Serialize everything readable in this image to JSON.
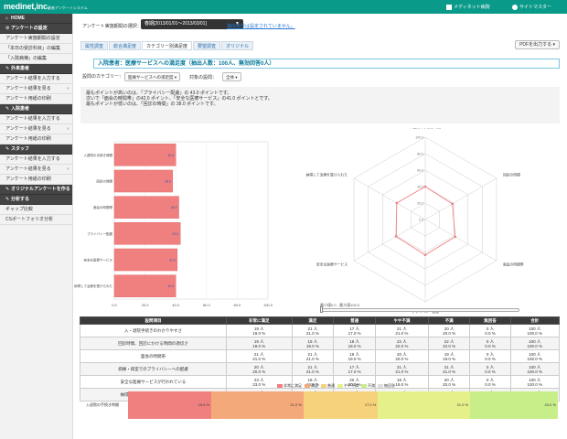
{
  "header": {
    "logo": "medinet,inc.",
    "logo_sub": "患者アンケートシステム",
    "hospital": "メディネット病院",
    "user": "サイトマスター"
  },
  "colors": {
    "brand": "#0a9a8a",
    "bar": "#f08080",
    "radar_line": "#f08080",
    "seg_very_satisfied": "#f08080",
    "seg_satisfied": "#f4a97a",
    "seg_normal": "#f6d27a",
    "seg_somewhat": "#e6f08a",
    "seg_dissatisfied": "#c8ee8a"
  },
  "sidebar": {
    "items": [
      {
        "label": "HOME",
        "dark": true,
        "sym": "⌂"
      },
      {
        "label": "アンケートの設定",
        "dark": true,
        "sym": "⚙"
      },
      {
        "label": "アンケート実施期間の設定",
        "dark": false
      },
      {
        "label": "「本日の受診科目」の編集",
        "dark": false
      },
      {
        "label": "「入院病棟」の編集",
        "dark": false
      },
      {
        "label": "外来患者",
        "dark": true,
        "sym": "✎"
      },
      {
        "label": "アンケート結果を入力する",
        "dark": false
      },
      {
        "label": "アンケート結果を見る",
        "dark": false,
        "chev": true
      },
      {
        "label": "アンケート用紙の印刷",
        "dark": false
      },
      {
        "label": "入院患者",
        "dark": true,
        "sym": "✎"
      },
      {
        "label": "アンケート結果を入力する",
        "dark": false
      },
      {
        "label": "アンケート結果を見る",
        "dark": false,
        "chev": true
      },
      {
        "label": "アンケート用紙の印刷",
        "dark": false
      },
      {
        "label": "スタッフ",
        "dark": true,
        "sym": "✎"
      },
      {
        "label": "アンケート結果を入力する",
        "dark": false
      },
      {
        "label": "アンケート結果を見る",
        "dark": false,
        "chev": true
      },
      {
        "label": "アンケート用紙の印刷",
        "dark": false
      },
      {
        "label": "オリジナルアンケートを作る",
        "dark": true,
        "sym": "✎"
      },
      {
        "label": "分析する",
        "dark": true,
        "sym": "✎"
      },
      {
        "label": "ギャップ比較",
        "dark": false
      },
      {
        "label": "CSポートフォリオ分析",
        "dark": false
      }
    ]
  },
  "period": {
    "label": "アンケート実施期間の選択：",
    "value": "春期[2013/01/01〜2013/03/01]",
    "link": "抽出条件は設定されていません。"
  },
  "tabs": [
    "属性調査",
    "総合満足度",
    "カテゴリー別満足度",
    "要望調査",
    "オリジナル"
  ],
  "active_tab": 2,
  "pdf_button": "PDFを出力する",
  "section_title": "入院患者：医療サービスへの満足度（抽出人数：100人、無効回答0人）",
  "filter": {
    "category_label": "設問のカテゴリー：",
    "category_value": "医療サービスへの満足度",
    "target_label": "対象の設問：",
    "target_value": "全体"
  },
  "summary": {
    "line1": "最もポイントが高いのは、「プライバシー配慮」の 43.0 ポイントです。",
    "line2": "次いで「面会の時間帯」の42.0 ポイント、「安全な医療サービス」の41.0 ポイントとです。",
    "line3": "最もポイントが低いのは、「回診の時間」の 38.0 ポイントです。"
  },
  "chart_data": [
    {
      "type": "bar",
      "orientation": "horizontal",
      "categories": [
        "入退院の手続き時間",
        "回診の時間",
        "面会の時間帯",
        "プライバシー配慮",
        "安全な医療サービス",
        "納得して治療を受けられた"
      ],
      "values": [
        40.0,
        38.0,
        42.0,
        43.0,
        41.0,
        40.0
      ],
      "xlim": [
        0,
        100
      ],
      "xticks": [
        "0.0",
        "20.0",
        "40.0",
        "60.0",
        "80.0",
        "100.0"
      ]
    },
    {
      "type": "radar",
      "axes": [
        "入退院の手続き時間",
        "回診の時間",
        "面会の時間帯",
        "プライバシー配慮",
        "安全な医療サービス",
        "納得して治療を受けられた"
      ],
      "values": [
        40.0,
        38.0,
        42.0,
        43.0,
        41.0,
        40.0
      ],
      "range": [
        0,
        100
      ],
      "ring_labels": [
        "0.0",
        "20.0",
        "40.0",
        "60.0",
        "80.0",
        "100.0"
      ]
    }
  ],
  "slider_label": "最小値0.0 - 最大値100.0",
  "table": {
    "headers": [
      "設問項目",
      "非常に満足",
      "満足",
      "普通",
      "やや不満",
      "不満",
      "無回答",
      "合計"
    ],
    "rows": [
      {
        "q": "入・退院手続きのわかりやすさ",
        "cells": [
          [
            "19 人",
            "19.0 %"
          ],
          [
            "21 人",
            "21.0 %"
          ],
          [
            "17 人",
            "17.0 %"
          ],
          [
            "21 人",
            "21.0 %"
          ],
          [
            "20 人",
            "20.0 %"
          ],
          [
            "0 人",
            "0.0 %"
          ],
          [
            "100 人",
            "100.0 %"
          ]
        ]
      },
      {
        "q": "回診時間、回診にかける時間の適切さ",
        "cells": [
          [
            "19 人",
            "19.0 %"
          ],
          [
            "19 人",
            "19.0 %"
          ],
          [
            "18 人",
            "18.0 %"
          ],
          [
            "22 人",
            "22.0 %"
          ],
          [
            "22 人",
            "22.0 %"
          ],
          [
            "0 人",
            "0.0 %"
          ],
          [
            "100 人",
            "100.0 %"
          ]
        ]
      },
      {
        "q": "面会の時間帯",
        "cells": [
          [
            "21 人",
            "21.0 %"
          ],
          [
            "21 人",
            "21.0 %"
          ],
          [
            "19 人",
            "19.0 %"
          ],
          [
            "20 人",
            "20.0 %"
          ],
          [
            "19 人",
            "19.0 %"
          ],
          [
            "0 人",
            "0.0 %"
          ],
          [
            "100 人",
            "100.0 %"
          ]
        ]
      },
      {
        "q": "病棟・病室でのプライバシーへの配慮",
        "cells": [
          [
            "20 人",
            "20.0 %"
          ],
          [
            "21 人",
            "21.0 %"
          ],
          [
            "17 人",
            "17.0 %"
          ],
          [
            "21 人",
            "21.0 %"
          ],
          [
            "21 人",
            "21.0 %"
          ],
          [
            "0 人",
            "0.0 %"
          ],
          [
            "100 人",
            "100.0 %"
          ]
        ]
      },
      {
        "q": "安全な医療サービスが行われている",
        "cells": [
          [
            "23 人",
            "23.0 %"
          ],
          [
            "18 人",
            "18.0 %"
          ],
          [
            "20 人",
            "20.0 %"
          ],
          [
            "19 人",
            "19.0 %"
          ],
          [
            "20 人",
            "20.0 %"
          ],
          [
            "0 人",
            "0.0 %"
          ],
          [
            "100 人",
            "100.0 %"
          ]
        ]
      },
      {
        "q": "納得して治療を受けることができた",
        "cells": [
          [
            "21 人",
            "21.0 %"
          ],
          [
            "19 人",
            "19.0 %"
          ],
          [
            "21 人",
            "21.0 %"
          ],
          [
            "19 人",
            "19.0 %"
          ],
          [
            "20 人",
            "20.0 %"
          ],
          [
            "0 人",
            "0.0 %"
          ],
          [
            "100 人",
            "100.0 %"
          ]
        ]
      }
    ]
  },
  "legend2": [
    "非常に満足",
    "満足",
    "普通",
    "やや不満",
    "不満",
    "無回答"
  ],
  "stack": {
    "label": "入退院の手続き時間",
    "values": [
      "19.0 %",
      "21.0 %",
      "17.0 %",
      "21.0 %",
      "20.0 %"
    ],
    "pcts": [
      19,
      21,
      17,
      21,
      20
    ]
  }
}
